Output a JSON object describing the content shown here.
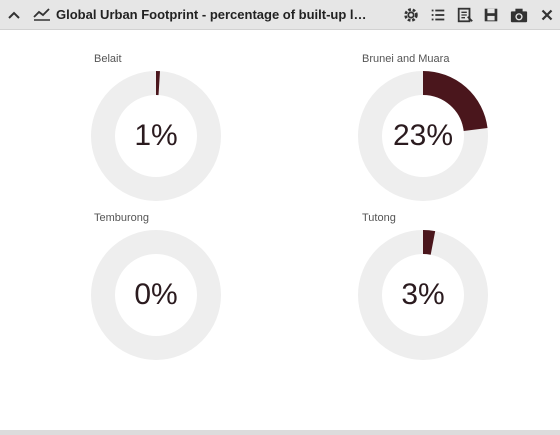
{
  "window": {
    "title": "Global Urban Footprint - percentage of built-up land per region",
    "icons": [
      "chevron-up-icon",
      "trend-icon",
      "gear-icon",
      "list-icon",
      "export-icon",
      "save-icon",
      "camera-icon",
      "close-icon"
    ]
  },
  "colors": {
    "accent": "#4a161c",
    "track": "#eeeeee"
  },
  "chart_data": {
    "type": "pie",
    "charts": [
      {
        "label": "Belait",
        "value": 1,
        "display": "1%"
      },
      {
        "label": "Brunei and Muara",
        "value": 23,
        "display": "23%"
      },
      {
        "label": "Temburong",
        "value": 0,
        "display": "0%"
      },
      {
        "label": "Tutong",
        "value": 3,
        "display": "3%"
      }
    ]
  }
}
